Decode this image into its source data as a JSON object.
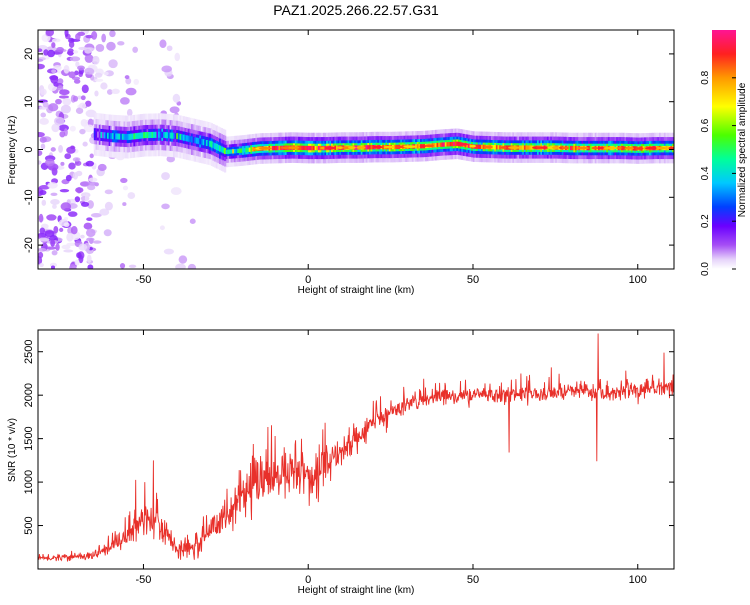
{
  "page": {
    "title": "PAZ1.2025.266.22.57.G31"
  },
  "chart_data": [
    {
      "type": "heatmap",
      "xlabel": "Height of straight line (km)",
      "ylabel": "Frequency (Hz)",
      "xlim": [
        -82,
        111
      ],
      "ylim": [
        -25,
        25
      ],
      "xticks": [
        -50,
        0,
        50,
        100
      ],
      "yticks": [
        -20,
        -10,
        0,
        10,
        20
      ],
      "grid": false,
      "colorbar": {
        "label": "Normalized spectral amplitude",
        "range": [
          0,
          1
        ],
        "ticks": [
          0.0,
          0.2,
          0.4,
          0.6,
          0.8
        ],
        "colormap": [
          "#ffffff",
          "#e6d3fa",
          "#a64ff5",
          "#6a00ff",
          "#0040ff",
          "#00c8ff",
          "#00ff9a",
          "#4cff00",
          "#ffff00",
          "#ff9900",
          "#ff2020",
          "#ff1493"
        ]
      },
      "ridge": [
        {
          "x": -65,
          "f": 3.2,
          "a": 0.35
        },
        {
          "x": -60,
          "f": 2.8,
          "a": 0.4
        },
        {
          "x": -55,
          "f": 2.6,
          "a": 0.42
        },
        {
          "x": -50,
          "f": 3.0,
          "a": 0.45
        },
        {
          "x": -45,
          "f": 3.1,
          "a": 0.45
        },
        {
          "x": -40,
          "f": 2.8,
          "a": 0.42
        },
        {
          "x": -35,
          "f": 2.0,
          "a": 0.4
        },
        {
          "x": -30,
          "f": 1.2,
          "a": 0.45
        },
        {
          "x": -25,
          "f": -0.5,
          "a": 0.5
        },
        {
          "x": -20,
          "f": -0.2,
          "a": 0.6
        },
        {
          "x": -15,
          "f": 0.2,
          "a": 0.75
        },
        {
          "x": -10,
          "f": 0.3,
          "a": 0.85
        },
        {
          "x": -5,
          "f": 0.4,
          "a": 0.88
        },
        {
          "x": 0,
          "f": 0.3,
          "a": 0.9
        },
        {
          "x": 5,
          "f": 0.3,
          "a": 0.88
        },
        {
          "x": 10,
          "f": 0.4,
          "a": 0.85
        },
        {
          "x": 15,
          "f": 0.4,
          "a": 0.85
        },
        {
          "x": 20,
          "f": 0.5,
          "a": 0.85
        },
        {
          "x": 25,
          "f": 0.5,
          "a": 0.85
        },
        {
          "x": 30,
          "f": 0.6,
          "a": 0.82
        },
        {
          "x": 35,
          "f": 0.7,
          "a": 0.85
        },
        {
          "x": 40,
          "f": 1.0,
          "a": 0.85
        },
        {
          "x": 45,
          "f": 1.2,
          "a": 0.88
        },
        {
          "x": 50,
          "f": 0.6,
          "a": 0.82
        },
        {
          "x": 55,
          "f": 0.5,
          "a": 0.85
        },
        {
          "x": 60,
          "f": 0.4,
          "a": 0.85
        },
        {
          "x": 65,
          "f": 0.4,
          "a": 0.82
        },
        {
          "x": 70,
          "f": 0.4,
          "a": 0.82
        },
        {
          "x": 75,
          "f": 0.4,
          "a": 0.8
        },
        {
          "x": 80,
          "f": 0.3,
          "a": 0.82
        },
        {
          "x": 85,
          "f": 0.3,
          "a": 0.8
        },
        {
          "x": 90,
          "f": 0.3,
          "a": 0.8
        },
        {
          "x": 95,
          "f": 0.3,
          "a": 0.82
        },
        {
          "x": 100,
          "f": 0.2,
          "a": 0.8
        },
        {
          "x": 105,
          "f": 0.3,
          "a": 0.82
        },
        {
          "x": 111,
          "f": 0.3,
          "a": 0.75
        }
      ],
      "noise_region": {
        "x_range": [
          -82,
          -35
        ],
        "f_range": [
          -25,
          25
        ]
      }
    },
    {
      "type": "line",
      "xlabel": "Height of straight line (km)",
      "ylabel": "SNR (10 * v/v)",
      "xlim": [
        -82,
        111
      ],
      "ylim": [
        0,
        2750
      ],
      "xticks": [
        -50,
        0,
        50,
        100
      ],
      "yticks": [
        500,
        1000,
        1500,
        2000,
        2500
      ],
      "grid": false,
      "series": [
        {
          "color": "#e8302a",
          "x": [
            -82,
            -75,
            -70,
            -65,
            -60,
            -55,
            -50,
            -45,
            -40,
            -35,
            -30,
            -25,
            -20,
            -15,
            -10,
            -5,
            0,
            5,
            10,
            15,
            20,
            25,
            30,
            35,
            40,
            45,
            50,
            55,
            60,
            65,
            70,
            75,
            80,
            85,
            90,
            95,
            100,
            105,
            111
          ],
          "y": [
            120,
            130,
            140,
            160,
            250,
            400,
            550,
            500,
            250,
            220,
            450,
            600,
            800,
            1000,
            1050,
            1100,
            1100,
            1150,
            1350,
            1500,
            1700,
            1800,
            1900,
            1950,
            1975,
            1975,
            2000,
            2000,
            2000,
            2025,
            2000,
            2025,
            2050,
            2050,
            2000,
            2050,
            2050,
            2075,
            2100
          ],
          "spread": [
            40,
            40,
            45,
            50,
            100,
            180,
            250,
            250,
            120,
            100,
            180,
            250,
            280,
            300,
            300,
            280,
            300,
            250,
            220,
            180,
            150,
            130,
            110,
            110,
            100,
            100,
            100,
            100,
            100,
            100,
            100,
            100,
            100,
            100,
            100,
            110,
            120,
            120,
            110
          ]
        }
      ],
      "annotations": [
        {
          "x": -47,
          "y": 1250
        },
        {
          "x": 61,
          "y": 2470
        },
        {
          "x": 61,
          "y": 1340
        },
        {
          "x": 88,
          "y": 2710
        },
        {
          "x": 87.5,
          "y": 1240
        },
        {
          "x": 108,
          "y": 2490
        }
      ]
    }
  ]
}
